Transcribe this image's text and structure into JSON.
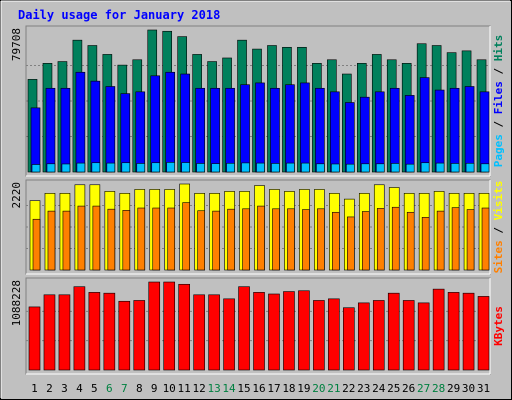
{
  "colors": {
    "outer_bg": "#C0C0C0",
    "panel_bg": "#C0C0C0",
    "title": "#0000FF",
    "hits": "#00805C",
    "files": "#0000FF",
    "pages": "#00C0FF",
    "visits": "#FFFF00",
    "sites": "#FF8000",
    "kbytes": "#FF0000",
    "weekend_label": "#008040",
    "weekday_label": "#000000"
  },
  "chart_data": [
    {
      "type": "bar",
      "panel": "hits_files_pages",
      "title": "Daily usage for January 2018",
      "ylabel_top": "79708",
      "ylim": [
        0,
        79708
      ],
      "legend": [
        "Pages",
        "Files",
        "Hits"
      ],
      "categories": [
        "1",
        "2",
        "3",
        "4",
        "5",
        "6",
        "7",
        "8",
        "9",
        "10",
        "11",
        "12",
        "13",
        "14",
        "15",
        "16",
        "17",
        "18",
        "19",
        "20",
        "21",
        "22",
        "23",
        "24",
        "25",
        "26",
        "27",
        "28",
        "29",
        "30",
        "31"
      ],
      "series": [
        {
          "name": "Hits",
          "values": [
            52000,
            61000,
            62000,
            74000,
            71000,
            66000,
            60000,
            63000,
            79708,
            79000,
            76000,
            66000,
            62000,
            64000,
            74000,
            69000,
            71000,
            70000,
            70000,
            61000,
            63000,
            55000,
            61000,
            66000,
            63000,
            61000,
            72000,
            71000,
            67000,
            68000,
            63000
          ]
        },
        {
          "name": "Files",
          "values": [
            36000,
            47000,
            47000,
            56000,
            51000,
            48000,
            44000,
            45000,
            54000,
            56000,
            55000,
            47000,
            47000,
            47000,
            49000,
            50000,
            47000,
            49000,
            50000,
            47000,
            45000,
            39000,
            42000,
            45000,
            47000,
            43000,
            53000,
            46000,
            47000,
            48000,
            45000
          ]
        },
        {
          "name": "Pages",
          "values": [
            4200,
            4600,
            4500,
            5000,
            5200,
            5000,
            5200,
            4800,
            5200,
            5400,
            5300,
            4800,
            4700,
            4900,
            5100,
            5000,
            4800,
            5000,
            5000,
            4600,
            4500,
            4400,
            4600,
            4600,
            4800,
            4400,
            5200,
            5000,
            4800,
            4900,
            4600
          ]
        }
      ]
    },
    {
      "type": "bar",
      "panel": "visits_sites",
      "ylabel_top": "2220",
      "ylim": [
        0,
        2220
      ],
      "legend": [
        "Sites",
        "Visits"
      ],
      "categories": [
        "1",
        "2",
        "3",
        "4",
        "5",
        "6",
        "7",
        "8",
        "9",
        "10",
        "11",
        "12",
        "13",
        "14",
        "15",
        "16",
        "17",
        "18",
        "19",
        "20",
        "21",
        "22",
        "23",
        "24",
        "25",
        "26",
        "27",
        "28",
        "29",
        "30",
        "31"
      ],
      "series": [
        {
          "name": "Visits",
          "values": [
            1790,
            1980,
            1980,
            2200,
            2200,
            2030,
            1980,
            2080,
            2080,
            2080,
            2220,
            1980,
            1980,
            2030,
            2030,
            2180,
            2080,
            2030,
            2080,
            2080,
            1980,
            1830,
            1980,
            2200,
            2130,
            1980,
            1980,
            2030,
            1980,
            1980,
            1980
          ]
        },
        {
          "name": "Sites",
          "values": [
            1310,
            1520,
            1520,
            1650,
            1650,
            1570,
            1540,
            1600,
            1600,
            1600,
            1740,
            1530,
            1520,
            1570,
            1580,
            1650,
            1580,
            1580,
            1560,
            1580,
            1490,
            1370,
            1510,
            1590,
            1620,
            1490,
            1360,
            1520,
            1610,
            1560,
            1600
          ]
        }
      ]
    },
    {
      "type": "bar",
      "panel": "kbytes",
      "ylabel_top": "1088228",
      "ylim": [
        0,
        1088228
      ],
      "legend": [
        "KBytes"
      ],
      "categories": [
        "1",
        "2",
        "3",
        "4",
        "5",
        "6",
        "7",
        "8",
        "9",
        "10",
        "11",
        "12",
        "13",
        "14",
        "15",
        "16",
        "17",
        "18",
        "19",
        "20",
        "21",
        "22",
        "23",
        "24",
        "25",
        "26",
        "27",
        "28",
        "29",
        "30",
        "31"
      ],
      "series": [
        {
          "name": "KBytes",
          "values": [
            780000,
            930000,
            930000,
            1030000,
            960000,
            950000,
            850000,
            860000,
            1088000,
            1088000,
            1060000,
            930000,
            930000,
            880000,
            1030000,
            960000,
            940000,
            970000,
            980000,
            860000,
            880000,
            770000,
            830000,
            860000,
            950000,
            860000,
            830000,
            1000000,
            960000,
            950000,
            910000
          ]
        }
      ]
    }
  ],
  "x_labels": [
    {
      "label": "1",
      "weekend": false
    },
    {
      "label": "2",
      "weekend": false
    },
    {
      "label": "3",
      "weekend": false
    },
    {
      "label": "4",
      "weekend": false
    },
    {
      "label": "5",
      "weekend": false
    },
    {
      "label": "6",
      "weekend": true
    },
    {
      "label": "7",
      "weekend": true
    },
    {
      "label": "8",
      "weekend": false
    },
    {
      "label": "9",
      "weekend": false
    },
    {
      "label": "10",
      "weekend": false
    },
    {
      "label": "11",
      "weekend": false
    },
    {
      "label": "12",
      "weekend": false
    },
    {
      "label": "13",
      "weekend": true
    },
    {
      "label": "14",
      "weekend": true
    },
    {
      "label": "15",
      "weekend": false
    },
    {
      "label": "16",
      "weekend": false
    },
    {
      "label": "17",
      "weekend": false
    },
    {
      "label": "18",
      "weekend": false
    },
    {
      "label": "19",
      "weekend": false
    },
    {
      "label": "20",
      "weekend": true
    },
    {
      "label": "21",
      "weekend": true
    },
    {
      "label": "22",
      "weekend": false
    },
    {
      "label": "23",
      "weekend": false
    },
    {
      "label": "24",
      "weekend": false
    },
    {
      "label": "25",
      "weekend": false
    },
    {
      "label": "26",
      "weekend": false
    },
    {
      "label": "27",
      "weekend": true
    },
    {
      "label": "28",
      "weekend": true
    },
    {
      "label": "29",
      "weekend": false
    },
    {
      "label": "30",
      "weekend": false
    },
    {
      "label": "31",
      "weekend": false
    }
  ],
  "side_legends": {
    "top": [
      {
        "text": "Pages",
        "color": "#00C0FF"
      },
      {
        "text": " / ",
        "color": "#000000"
      },
      {
        "text": "Files",
        "color": "#0000FF"
      },
      {
        "text": " / ",
        "color": "#000000"
      },
      {
        "text": "Hits",
        "color": "#00805C"
      }
    ],
    "middle": [
      {
        "text": "Sites",
        "color": "#FF8000"
      },
      {
        "text": " / ",
        "color": "#000000"
      },
      {
        "text": "Visits",
        "color": "#FFFF00"
      }
    ],
    "bottom": [
      {
        "text": "KBytes",
        "color": "#FF0000"
      }
    ]
  }
}
